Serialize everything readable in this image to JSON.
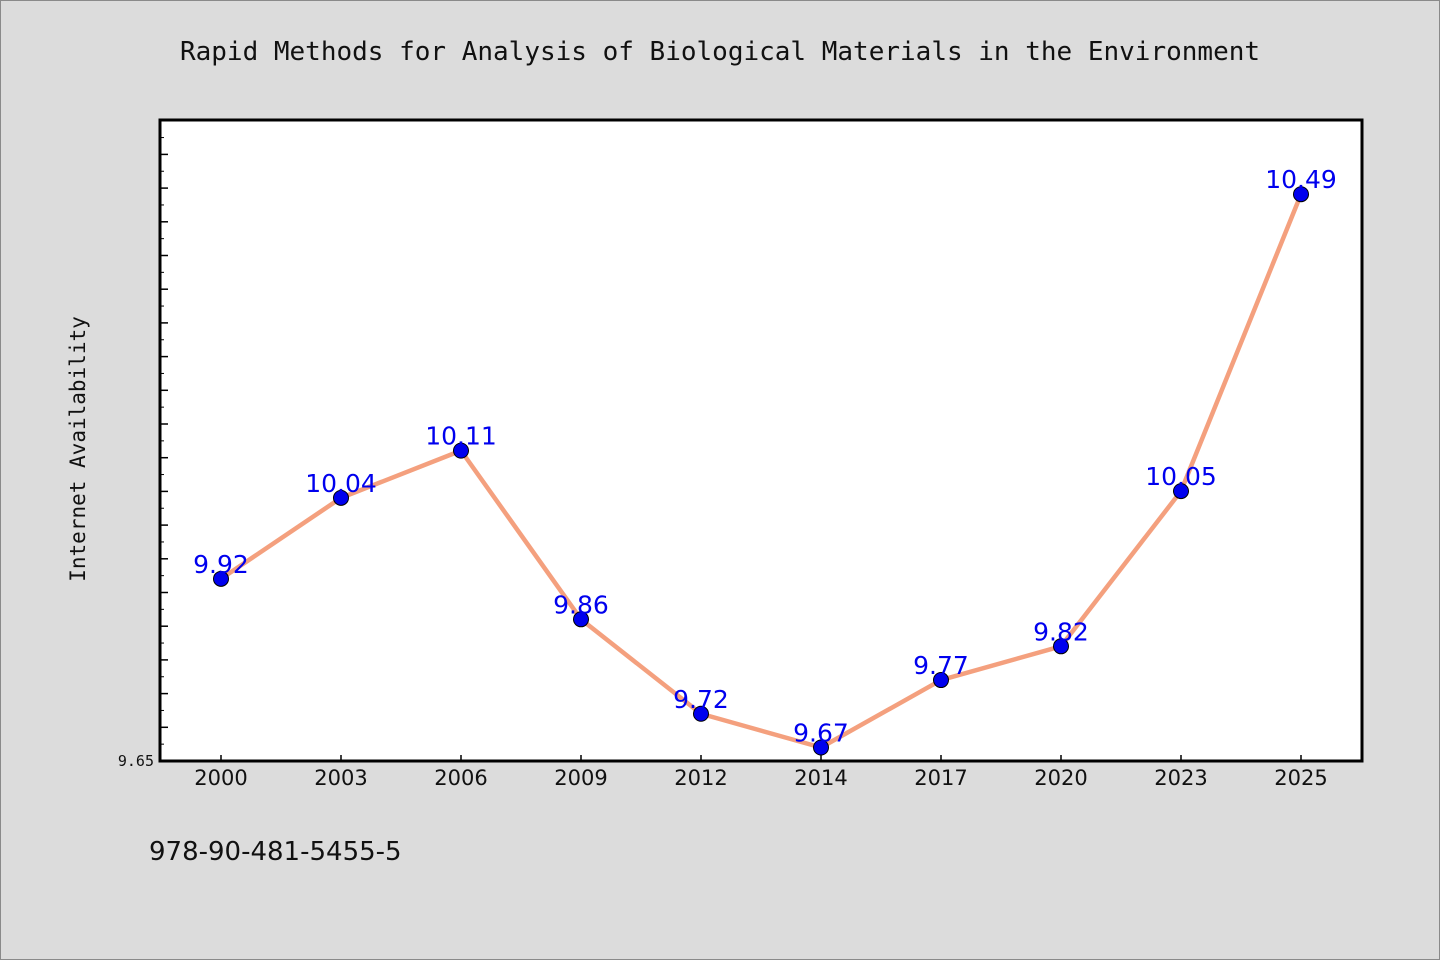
{
  "chart_data": {
    "type": "line",
    "title": "Rapid Methods for Analysis of Biological Materials in the Environment",
    "xlabel": "",
    "ylabel": "Internet Availability",
    "categories": [
      "2000",
      "2003",
      "2006",
      "2009",
      "2012",
      "2014",
      "2017",
      "2020",
      "2023",
      "2025"
    ],
    "series": [
      {
        "values": [
          9.92,
          10.04,
          10.11,
          9.86,
          9.72,
          9.67,
          9.77,
          9.82,
          10.05,
          10.49
        ],
        "data_labels": [
          "9.92",
          "10.04",
          "10.11",
          "9.86",
          "9.72",
          "9.67",
          "9.77",
          "9.82",
          "10.05",
          "10.49"
        ]
      }
    ],
    "ylim": [
      9.65,
      10.6
    ],
    "y_tick_labels": [
      "9.65"
    ],
    "grid": false,
    "legend": "none",
    "colors": {
      "line": "#f4a07e",
      "marker": "#0000ee",
      "data_label": "#0000ee"
    }
  },
  "footer": {
    "identifier": "978-90-481-5455-5"
  }
}
